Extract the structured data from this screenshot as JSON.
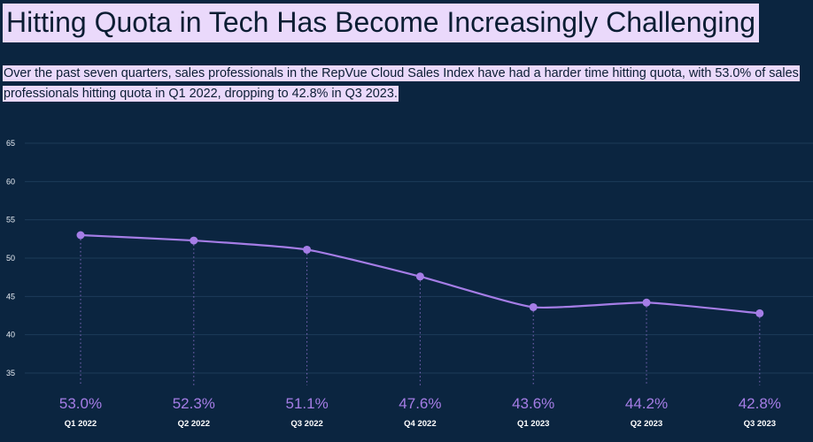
{
  "header": {
    "title": "Hitting Quota in Tech Has Become Increasingly Challenging",
    "subtitle": "Over the past seven quarters, sales professionals in the RepVue Cloud Sales Index have had a harder time hitting quota, with 53.0% of sales professionals hitting quota in Q1 2022, dropping to 42.8% in Q3 2023."
  },
  "colors": {
    "background": "#0b2540",
    "line": "#a57de6",
    "highlight": "#ead9fb",
    "grid": "#1d3b59"
  },
  "chart_data": {
    "type": "line",
    "title": "Hitting Quota in Tech Has Become Increasingly Challenging",
    "xlabel": "",
    "ylabel": "",
    "categories": [
      "Q1 2022",
      "Q2 2022",
      "Q3 2022",
      "Q4 2022",
      "Q1 2023",
      "Q2 2023",
      "Q3 2023"
    ],
    "values": [
      53.0,
      52.3,
      51.1,
      47.6,
      43.6,
      44.2,
      42.8
    ],
    "value_labels": [
      "53.0%",
      "52.3%",
      "51.1%",
      "47.6%",
      "43.6%",
      "44.2%",
      "42.8%"
    ],
    "y_ticks": [
      35,
      40,
      45,
      50,
      55,
      60,
      65
    ],
    "ylim": [
      35,
      65
    ],
    "grid": true,
    "legend": "none",
    "smooth": true
  }
}
